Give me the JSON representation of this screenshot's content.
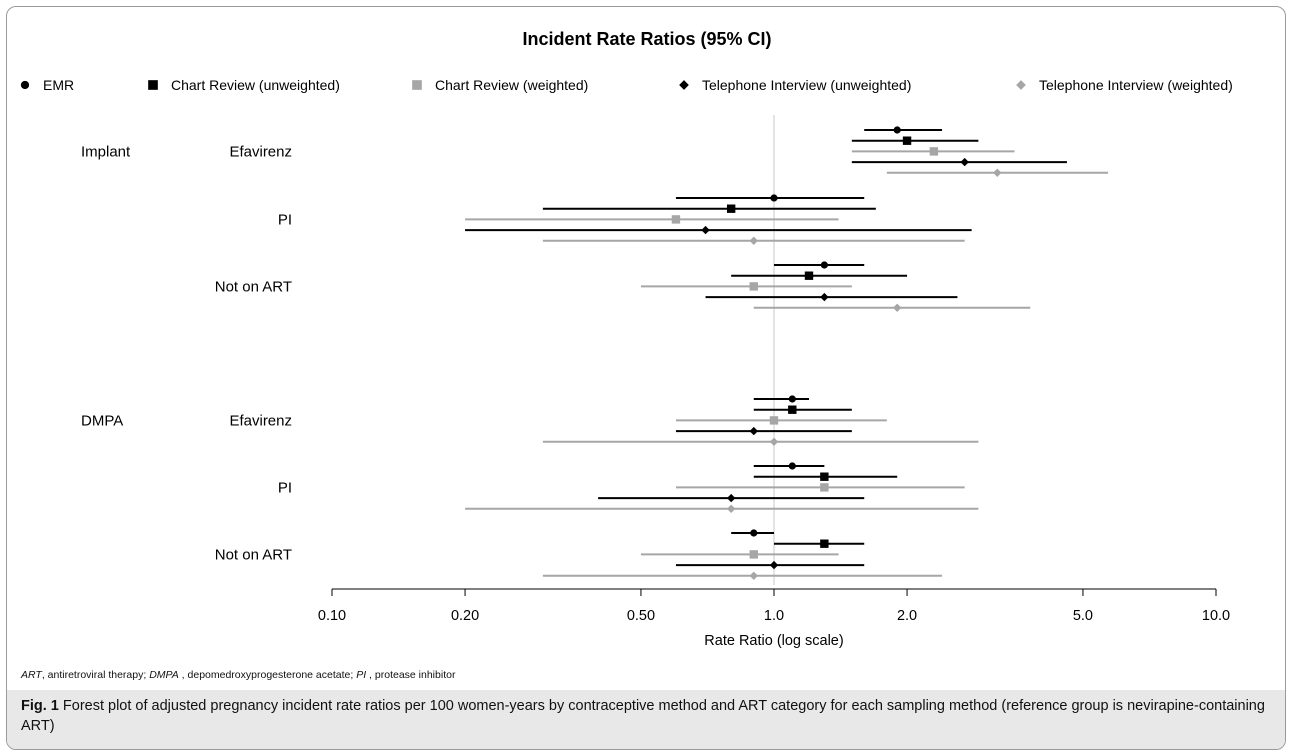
{
  "chart_data": {
    "type": "scatter",
    "title": "Incident Rate Ratios (95% CI)",
    "xlabel": "Rate Ratio (log scale)",
    "x_scale": "log",
    "xlim": [
      0.1,
      10.0
    ],
    "x_ticks": [
      "0.10",
      "0.20",
      "0.50",
      "1.0",
      "2.0",
      "5.0",
      "10.0"
    ],
    "x_tick_values": [
      0.1,
      0.2,
      0.5,
      1.0,
      2.0,
      5.0,
      10.0
    ],
    "reference_line": 1.0,
    "legend_position": "top",
    "series": [
      {
        "name": "EMR",
        "marker": "circle",
        "color": "#000000"
      },
      {
        "name": "Chart Review (unweighted)",
        "marker": "square",
        "color": "#000000"
      },
      {
        "name": "Chart Review (weighted)",
        "marker": "square",
        "color": "#a6a6a6"
      },
      {
        "name": "Telephone Interview (unweighted)",
        "marker": "diamond",
        "color": "#000000"
      },
      {
        "name": "Telephone Interview (weighted)",
        "marker": "diamond",
        "color": "#a6a6a6"
      }
    ],
    "groups": [
      {
        "method": "Implant",
        "art": "Efavirenz",
        "estimates": [
          {
            "est": 1.9,
            "lo": 1.6,
            "hi": 2.4
          },
          {
            "est": 2.0,
            "lo": 1.5,
            "hi": 2.9
          },
          {
            "est": 2.3,
            "lo": 1.5,
            "hi": 3.5
          },
          {
            "est": 2.7,
            "lo": 1.5,
            "hi": 4.6
          },
          {
            "est": 3.2,
            "lo": 1.8,
            "hi": 5.7
          }
        ]
      },
      {
        "method": "",
        "art": "PI",
        "estimates": [
          {
            "est": 1.0,
            "lo": 0.6,
            "hi": 1.6
          },
          {
            "est": 0.8,
            "lo": 0.3,
            "hi": 1.7
          },
          {
            "est": 0.6,
            "lo": 0.2,
            "hi": 1.4
          },
          {
            "est": 0.7,
            "lo": 0.2,
            "hi": 2.8
          },
          {
            "est": 0.9,
            "lo": 0.3,
            "hi": 2.7
          }
        ]
      },
      {
        "method": "",
        "art": "Not on ART",
        "estimates": [
          {
            "est": 1.3,
            "lo": 1.0,
            "hi": 1.6
          },
          {
            "est": 1.2,
            "lo": 0.8,
            "hi": 2.0
          },
          {
            "est": 0.9,
            "lo": 0.5,
            "hi": 1.5
          },
          {
            "est": 1.3,
            "lo": 0.7,
            "hi": 2.6
          },
          {
            "est": 1.9,
            "lo": 0.9,
            "hi": 3.8
          }
        ]
      },
      {
        "method": "DMPA",
        "art": "Efavirenz",
        "estimates": [
          {
            "est": 1.1,
            "lo": 0.9,
            "hi": 1.2
          },
          {
            "est": 1.1,
            "lo": 0.9,
            "hi": 1.5
          },
          {
            "est": 1.0,
            "lo": 0.6,
            "hi": 1.8
          },
          {
            "est": 0.9,
            "lo": 0.6,
            "hi": 1.5
          },
          {
            "est": 1.0,
            "lo": 0.3,
            "hi": 2.9
          }
        ]
      },
      {
        "method": "",
        "art": "PI",
        "estimates": [
          {
            "est": 1.1,
            "lo": 0.9,
            "hi": 1.3
          },
          {
            "est": 1.3,
            "lo": 0.9,
            "hi": 1.9
          },
          {
            "est": 1.3,
            "lo": 0.6,
            "hi": 2.7
          },
          {
            "est": 0.8,
            "lo": 0.4,
            "hi": 1.6
          },
          {
            "est": 0.8,
            "lo": 0.2,
            "hi": 2.9
          }
        ]
      },
      {
        "method": "",
        "art": "Not on ART",
        "estimates": [
          {
            "est": 0.9,
            "lo": 0.8,
            "hi": 1.0
          },
          {
            "est": 1.3,
            "lo": 1.0,
            "hi": 1.6
          },
          {
            "est": 0.9,
            "lo": 0.5,
            "hi": 1.4
          },
          {
            "est": 1.0,
            "lo": 0.6,
            "hi": 1.6
          },
          {
            "est": 0.9,
            "lo": 0.3,
            "hi": 2.4
          }
        ]
      }
    ]
  },
  "footnote": {
    "parts": [
      {
        "text": "ART",
        "italic": true
      },
      {
        "text": ", antiretroviral therapy; ",
        "italic": false
      },
      {
        "text": "DMPA",
        "italic": true
      },
      {
        "text": " , depomedroxyprogesterone acetate; ",
        "italic": false
      },
      {
        "text": "PI",
        "italic": true
      },
      {
        "text": " , protease inhibitor",
        "italic": false
      }
    ]
  },
  "caption": {
    "label": "Fig. 1",
    "text": " Forest plot of adjusted pregnancy incident rate ratios per 100 women-years by contraceptive method and ART category for each sampling method (reference group is nevirapine-containing ART)"
  }
}
